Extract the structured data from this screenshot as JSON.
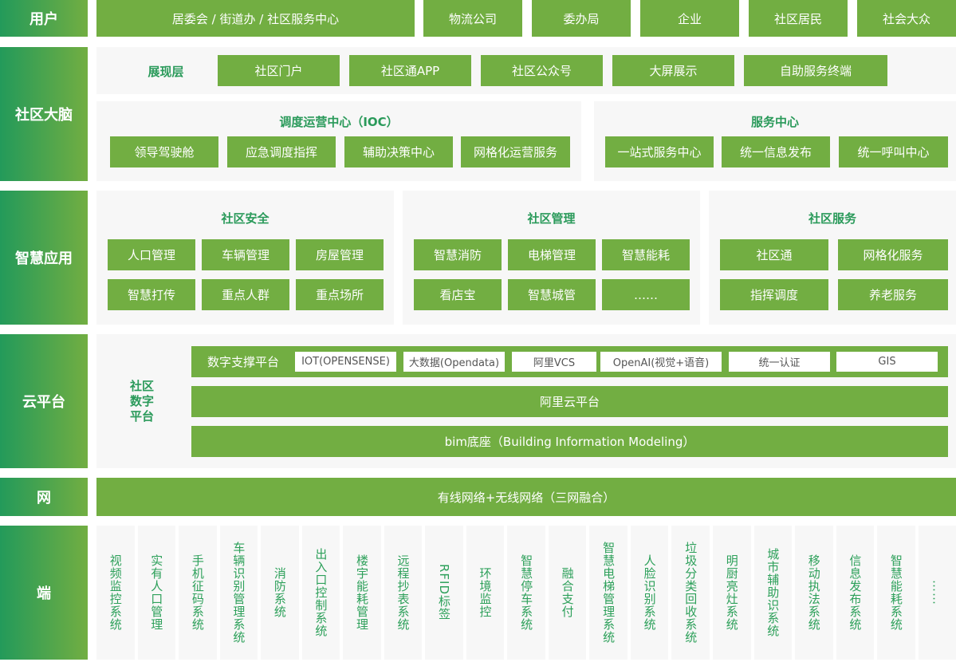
{
  "rows": {
    "users": "用户",
    "brain": "社区大脑",
    "apps": "智慧应用",
    "cloud": "云平台",
    "net": "网",
    "terminal": "端"
  },
  "users": [
    "居委会 / 街道办 / 社区服务中心",
    "物流公司",
    "委办局",
    "企业",
    "社区居民",
    "社会大众"
  ],
  "display": {
    "title": "展现层",
    "items": [
      "社区门户",
      "社区通APP",
      "社区公众号",
      "大屏展示",
      "自助服务终端"
    ]
  },
  "ioc": {
    "title": "调度运营中心（IOC）",
    "items": [
      "领导驾驶舱",
      "应急调度指挥",
      "辅助决策中心",
      "网格化运营服务"
    ]
  },
  "service_center": {
    "title": "服务中心",
    "items": [
      "一站式服务中心",
      "统一信息发布",
      "统一呼叫中心"
    ]
  },
  "security": {
    "title": "社区安全",
    "items": [
      "人口管理",
      "车辆管理",
      "房屋管理",
      "智慧打传",
      "重点人群",
      "重点场所"
    ]
  },
  "management": {
    "title": "社区管理",
    "items": [
      "智慧消防",
      "电梯管理",
      "智慧能耗",
      "看店宝",
      "智慧城管",
      "……"
    ]
  },
  "services": {
    "title": "社区服务",
    "items": [
      "社区通",
      "网格化服务",
      "指挥调度",
      "养老服务"
    ]
  },
  "cloud": {
    "label": "社区数字平台",
    "support_label": "数字支撑平台",
    "chips": [
      "IOT(OPENSENSE)",
      "大数据(Opendata)",
      "阿里VCS",
      "OpenAI(视觉+语音)",
      "统一认证",
      "GIS"
    ],
    "aliyun": "阿里云平台",
    "bim": "bim底座（Building Information Modeling）"
  },
  "network": "有线网络+无线网络（三网融合）",
  "terminals": [
    "视频监控系统",
    "实有人口管理",
    "手机征码系统",
    "车辆识别管理系统",
    "消防系统",
    "出入口控制系统",
    "楼宇能耗管理",
    "远程抄表系统",
    "RFID标签",
    "环境监控",
    "智慧停车系统",
    "融合支付",
    "智慧电梯管理系统",
    "人脸识别系统",
    "垃圾分类回收系统",
    "明厨亮灶系统",
    "城市辅助识系统",
    "移动执法系统",
    "信息发布系统",
    "智慧能耗系统",
    "……"
  ],
  "colors": {
    "green": "#72ae42",
    "dark_green": "#239a5a",
    "panel": "#f7f7f7"
  }
}
